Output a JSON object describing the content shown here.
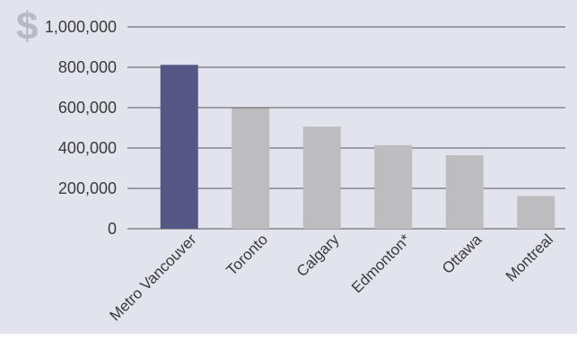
{
  "chart_data": {
    "type": "bar",
    "currency_symbol": "$",
    "categories": [
      "Metro Vancouver",
      "Toronto",
      "Calgary",
      "Edmonton*",
      "Ottawa",
      "Montreal"
    ],
    "values": [
      812000,
      598000,
      506000,
      414000,
      364000,
      162000
    ],
    "y_ticks": [
      "0",
      "200,000",
      "400,000",
      "600,000",
      "800,000",
      "1,000,000"
    ],
    "ylim": [
      0,
      1000000
    ],
    "highlight_index": 0,
    "colors": {
      "background": "#e3e3ee",
      "highlight_bar": "#545783",
      "bar": "#bdbdbf",
      "gridline": "#555555",
      "currency_symbol": "#b9b9c6"
    }
  }
}
